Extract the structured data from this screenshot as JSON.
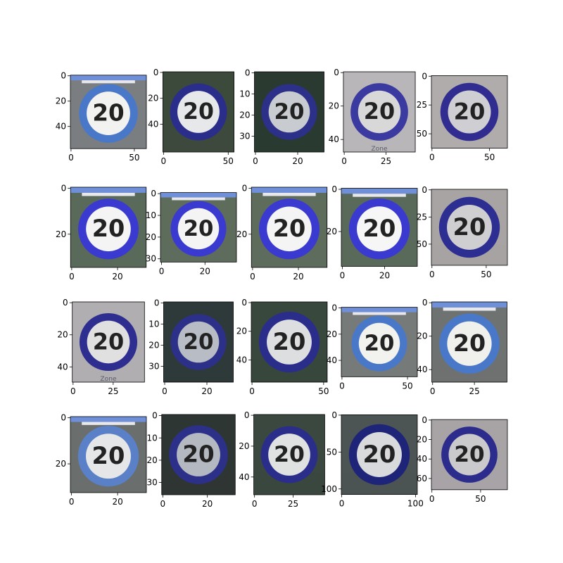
{
  "figure": {
    "background": "#ffffff",
    "grid_rows": 4,
    "grid_cols": 5,
    "sign_text": "20",
    "panels": [
      {
        "row": 0,
        "col": 0,
        "img_w": 60,
        "img_h": 58,
        "xticks": [
          "0",
          "50"
        ],
        "yticks": [
          "0",
          "20",
          "40"
        ],
        "ring": "#4a78c8",
        "inner": "#f2f2f0",
        "bg": "#7a7e80",
        "top_bar": true,
        "subtext": ""
      },
      {
        "row": 0,
        "col": 1,
        "img_w": 55,
        "img_h": 62,
        "xticks": [
          "0",
          "50"
        ],
        "yticks": [
          "0",
          "20",
          "40"
        ],
        "ring": "#2a2e8a",
        "inner": "#e6e8ea",
        "bg": "#3c4a3c",
        "top_bar": false,
        "subtext": ""
      },
      {
        "row": 0,
        "col": 2,
        "img_w": 33,
        "img_h": 38,
        "xticks": [
          "0",
          "20"
        ],
        "yticks": [
          "0",
          "10",
          "20",
          "30"
        ],
        "ring": "#2c3088",
        "inner": "#c8ccd0",
        "bg": "#2a3a30",
        "top_bar": false,
        "subtext": ""
      },
      {
        "row": 0,
        "col": 3,
        "img_w": 43,
        "img_h": 48,
        "xticks": [
          "0",
          "25"
        ],
        "yticks": [
          "0",
          "20",
          "40"
        ],
        "ring": "#3a3aa0",
        "inner": "#d8d8d8",
        "bg": "#b8b6b8",
        "top_bar": false,
        "subtext": "Zone"
      },
      {
        "row": 0,
        "col": 4,
        "img_w": 66,
        "img_h": 63,
        "xticks": [
          "0",
          "50"
        ],
        "yticks": [
          "0",
          "25",
          "50"
        ],
        "ring": "#302c90",
        "inner": "#cfcfd3",
        "bg": "#b0acac",
        "top_bar": false,
        "subtext": ""
      },
      {
        "row": 1,
        "col": 0,
        "img_w": 33,
        "img_h": 35,
        "xticks": [
          "0",
          "20"
        ],
        "yticks": [
          "0",
          "20"
        ],
        "ring": "#3a3ad0",
        "inner": "#f4f4f4",
        "bg": "#5a6a5a",
        "top_bar": true,
        "subtext": ""
      },
      {
        "row": 1,
        "col": 1,
        "img_w": 35,
        "img_h": 32,
        "xticks": [
          "0",
          "20"
        ],
        "yticks": [
          "0",
          "10",
          "20",
          "30"
        ],
        "ring": "#3a3ad0",
        "inner": "#f4f4f4",
        "bg": "#5e6c5c",
        "top_bar": true,
        "subtext": ""
      },
      {
        "row": 1,
        "col": 2,
        "img_w": 33,
        "img_h": 35,
        "xticks": [
          "0",
          "20"
        ],
        "yticks": [
          "0",
          "20"
        ],
        "ring": "#3a3ad0",
        "inner": "#f4f4f4",
        "bg": "#5e6c5c",
        "top_bar": true,
        "subtext": ""
      },
      {
        "row": 1,
        "col": 3,
        "img_w": 36,
        "img_h": 37,
        "xticks": [
          "0",
          "20"
        ],
        "yticks": [
          "0",
          "20"
        ],
        "ring": "#3a3ad0",
        "inner": "#f6f6f6",
        "bg": "#5a6a5a",
        "top_bar": true,
        "subtext": ""
      },
      {
        "row": 1,
        "col": 4,
        "img_w": 70,
        "img_h": 70,
        "xticks": [
          "0",
          "50"
        ],
        "yticks": [
          "0",
          "25",
          "50"
        ],
        "ring": "#2c2e92",
        "inner": "#cfcfd2",
        "bg": "#a8a4a4",
        "top_bar": false,
        "subtext": ""
      },
      {
        "row": 2,
        "col": 0,
        "img_w": 45,
        "img_h": 50,
        "xticks": [
          "0",
          "25"
        ],
        "yticks": [
          "0",
          "20",
          "40"
        ],
        "ring": "#2e2e90",
        "inner": "#e0e0e0",
        "bg": "#b0aeb0",
        "top_bar": false,
        "subtext": "Zone"
      },
      {
        "row": 2,
        "col": 1,
        "img_w": 33,
        "img_h": 38,
        "xticks": [
          "0",
          "20"
        ],
        "yticks": [
          "0",
          "10",
          "20",
          "30"
        ],
        "ring": "#2c3088",
        "inner": "#b8bcc4",
        "bg": "#2e3a3a",
        "top_bar": false,
        "subtext": ""
      },
      {
        "row": 2,
        "col": 2,
        "img_w": 53,
        "img_h": 56,
        "xticks": [
          "0",
          "50"
        ],
        "yticks": [
          "0",
          "20",
          "40"
        ],
        "ring": "#2a2e8a",
        "inner": "#dcdee0",
        "bg": "#38483c",
        "top_bar": false,
        "subtext": ""
      },
      {
        "row": 2,
        "col": 3,
        "img_w": 58,
        "img_h": 53,
        "xticks": [
          "0",
          "50"
        ],
        "yticks": [
          "0",
          "20",
          "40"
        ],
        "ring": "#4a78c8",
        "inner": "#f2f2ee",
        "bg": "#767a78",
        "top_bar": true,
        "subtext": ""
      },
      {
        "row": 2,
        "col": 4,
        "img_w": 45,
        "img_h": 48,
        "xticks": [
          "0",
          "25"
        ],
        "yticks": [
          "0",
          "20",
          "40"
        ],
        "ring": "#4a78c8",
        "inner": "#f0f0ec",
        "bg": "#6e7270",
        "top_bar": true,
        "subtext": ""
      },
      {
        "row": 3,
        "col": 0,
        "img_w": 33,
        "img_h": 33,
        "xticks": [
          "0",
          "20"
        ],
        "yticks": [
          "0",
          "20"
        ],
        "ring": "#5a80c8",
        "inner": "#e4e6e8",
        "bg": "#6a6e6c",
        "top_bar": true,
        "subtext": ""
      },
      {
        "row": 3,
        "col": 1,
        "img_w": 33,
        "img_h": 36,
        "xticks": [
          "0",
          "20"
        ],
        "yticks": [
          "0",
          "10",
          "20",
          "30"
        ],
        "ring": "#2c3088",
        "inner": "#b4b8c0",
        "bg": "#2e3634",
        "top_bar": false,
        "subtext": ""
      },
      {
        "row": 3,
        "col": 2,
        "img_w": 46,
        "img_h": 52,
        "xticks": [
          "0",
          "25"
        ],
        "yticks": [
          "0",
          "20",
          "40"
        ],
        "ring": "#2a2e8a",
        "inner": "#e0e2e2",
        "bg": "#3a4840",
        "top_bar": false,
        "subtext": ""
      },
      {
        "row": 3,
        "col": 3,
        "img_w": 103,
        "img_h": 108,
        "xticks": [
          "0",
          "100"
        ],
        "yticks": [
          "0",
          "50",
          "100"
        ],
        "ring": "#1e2478",
        "inner": "#d8dadc",
        "bg": "#4c5454",
        "top_bar": false,
        "subtext": ""
      },
      {
        "row": 3,
        "col": 4,
        "img_w": 78,
        "img_h": 72,
        "xticks": [
          "0",
          "50"
        ],
        "yticks": [
          "0",
          "20",
          "40",
          "60"
        ],
        "ring": "#2c2c8c",
        "inner": "#cacacc",
        "bg": "#a8a4a6",
        "top_bar": false,
        "subtext": ""
      }
    ]
  }
}
